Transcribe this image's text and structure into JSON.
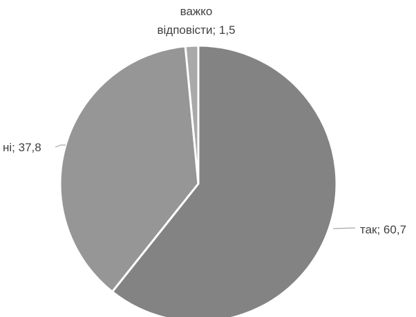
{
  "chart_data": {
    "type": "pie",
    "title": "",
    "slices": [
      {
        "label": "так; 60,7",
        "value": 60.7,
        "color": "#838383"
      },
      {
        "label": "ні; 37,8",
        "value": 37.8,
        "color": "#969696"
      },
      {
        "label_lines": [
          "важко",
          "відповісти; 1,5"
        ],
        "value": 1.5,
        "color": "#a9a9a9"
      }
    ],
    "legend": "none",
    "leader_line_color": "#a6a6a6",
    "separator_color": "#ffffff",
    "label_color": "#404040"
  }
}
